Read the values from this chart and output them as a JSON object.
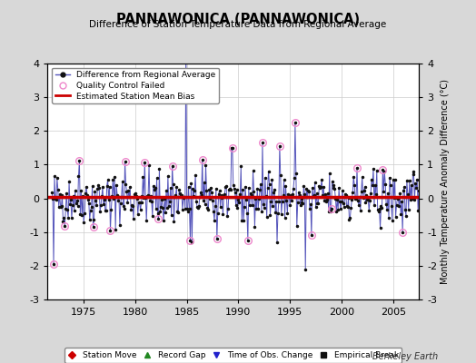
{
  "title": "PANNAWONICA (PANNAWONICA)",
  "subtitle": "Difference of Station Temperature Data from Regional Average",
  "ylabel_right": "Monthly Temperature Anomaly Difference (°C)",
  "ylim": [
    -3,
    4
  ],
  "xlim": [
    1971.5,
    2007.5
  ],
  "xticks": [
    1975,
    1980,
    1985,
    1990,
    1995,
    2000,
    2005
  ],
  "yticks": [
    -3,
    -2,
    -1,
    0,
    1,
    2,
    3,
    4
  ],
  "mean_bias": 0.05,
  "background_color": "#d8d8d8",
  "plot_bg_color": "#ffffff",
  "line_color": "#5555bb",
  "dot_color": "#111111",
  "bias_color": "#cc0000",
  "qc_circle_color": "#ee88cc",
  "watermark": "Berkeley Earth",
  "seed": 42,
  "n_points": 432,
  "start_year": 1971.917
}
